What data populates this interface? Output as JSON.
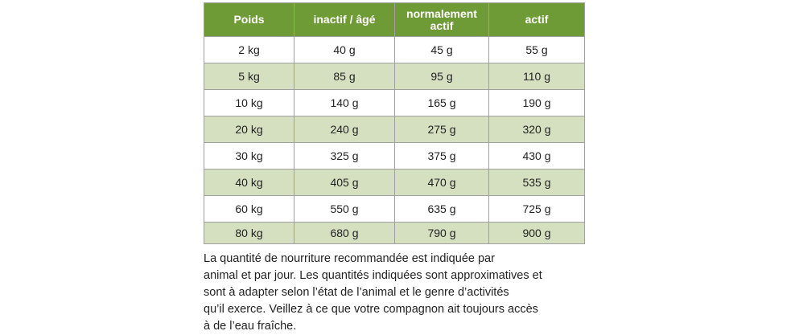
{
  "table": {
    "header": [
      "Poids",
      "inactif / âgé",
      "normalement actif",
      "actif"
    ],
    "rows": [
      [
        "2 kg",
        "40 g",
        "45 g",
        "55 g"
      ],
      [
        "5 kg",
        "85 g",
        "95 g",
        "110 g"
      ],
      [
        "10 kg",
        "140 g",
        "165 g",
        "190 g"
      ],
      [
        "20 kg",
        "240 g",
        "275 g",
        "320 g"
      ],
      [
        "30 kg",
        "325 g",
        "375 g",
        "430 g"
      ],
      [
        "40 kg",
        "405 g",
        "470 g",
        "535 g"
      ],
      [
        "60 kg",
        "550 g",
        "635 g",
        "725 g"
      ],
      [
        "80 kg",
        "680 g",
        "790 g",
        "900 g"
      ]
    ]
  },
  "note": {
    "lines": [
      "La quantité de nourriture recommandée est indiquée par",
      "animal et par jour. Les quantités indiquées sont approximatives et",
      "sont à adapter selon l’état de l’animal et le genre d’activités",
      "qu’il exerce. Veillez à ce que votre compagnon ait toujours accès",
      "à de l’eau fraîche."
    ]
  }
}
